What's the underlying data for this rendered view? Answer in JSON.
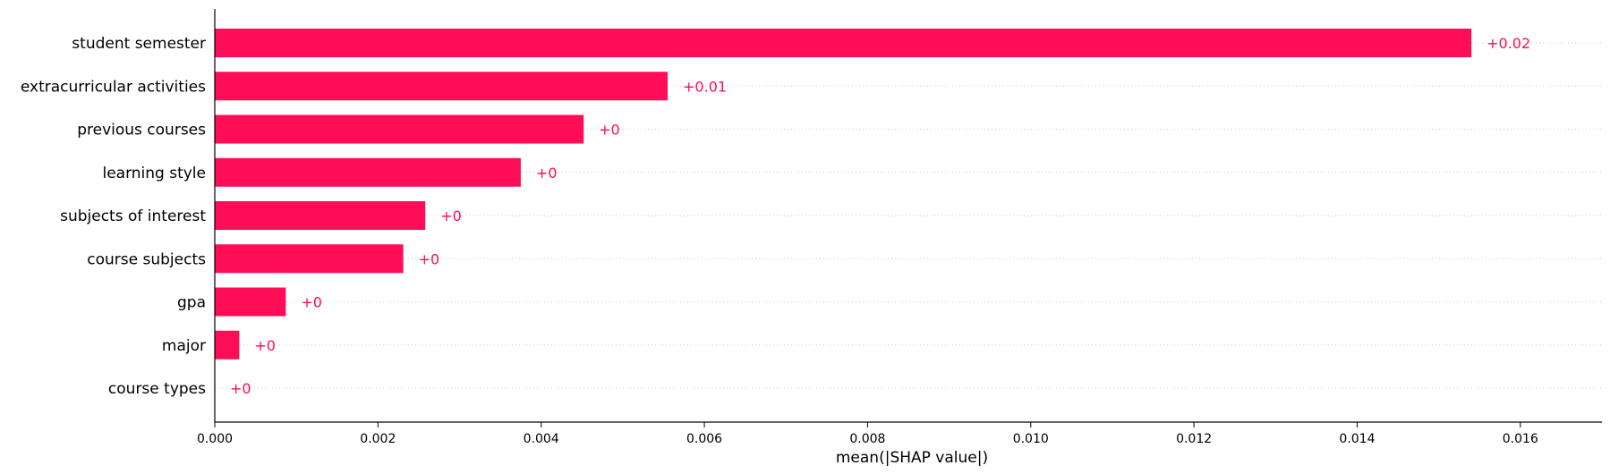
{
  "chart_data": {
    "type": "bar",
    "orientation": "horizontal",
    "title": "",
    "xlabel": "mean(|SHAP value|)",
    "ylabel": "",
    "xlim": [
      0,
      0.017
    ],
    "x_ticks": [
      "0.000",
      "0.002",
      "0.004",
      "0.006",
      "0.008",
      "0.010",
      "0.012",
      "0.014",
      "0.016"
    ],
    "x_tick_values": [
      0,
      0.002,
      0.004,
      0.006,
      0.008,
      0.01,
      0.012,
      0.014,
      0.016
    ],
    "grid": "horizontal dotted lines per row",
    "bar_color": "#ff0d57",
    "label_color": "#ff0d57",
    "categories": [
      "student semester",
      "extracurricular activities",
      "previous courses",
      "learning style",
      "subjects of interest",
      "course subjects",
      "gpa",
      "major",
      "course types"
    ],
    "values": [
      0.0154,
      0.00555,
      0.00452,
      0.00375,
      0.00258,
      0.00231,
      0.00087,
      0.0003,
      0.0
    ],
    "data_labels": [
      "+0.02",
      "+0.01",
      "+0",
      "+0",
      "+0",
      "+0",
      "+0",
      "+0",
      "+0"
    ]
  }
}
